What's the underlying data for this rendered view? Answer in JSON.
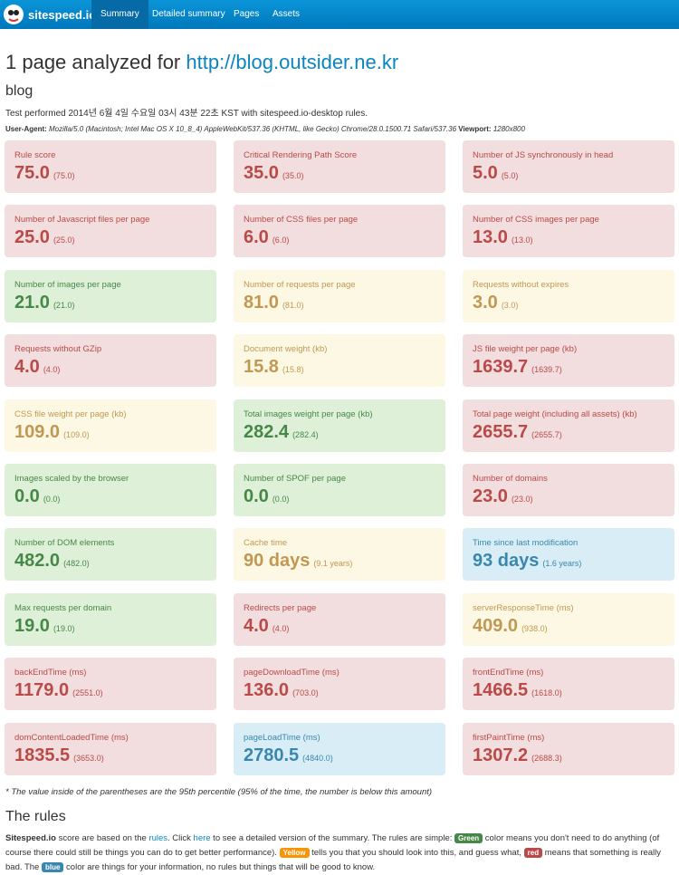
{
  "navbar": {
    "brand": "sitespeed.io",
    "items": [
      "Summary",
      "Detailed summary",
      "Pages",
      "Assets"
    ],
    "active": 0
  },
  "header": {
    "title": "1 page analyzed for ",
    "link": "http://blog.outsider.ne.kr",
    "subtitle": "blog",
    "test_info": "Test performed 2014년 6월 4일 수요일 03시 43분 22초 KST with sitespeed.io-desktop rules.",
    "user_agent_label": "User-Agent:",
    "user_agent": "Mozilla/5.0 (Macintosh; Intel Mac OS X 10_8_4) AppleWebKit/537.36 (KHTML, like Gecko) Chrome/28.0.1500.71 Safari/537.36",
    "viewport_label": "Viewport:",
    "viewport": "1280x800"
  },
  "cards": [
    {
      "title": "Rule score",
      "value": "75.0",
      "p95": "(75.0)",
      "color": "red"
    },
    {
      "title": "Critical Rendering Path Score",
      "value": "35.0",
      "p95": "(35.0)",
      "color": "red"
    },
    {
      "title": "Number of JS synchronously in head",
      "value": "5.0",
      "p95": "(5.0)",
      "color": "red"
    },
    {
      "title": "Number of Javascript files per page",
      "value": "25.0",
      "p95": "(25.0)",
      "color": "red"
    },
    {
      "title": "Number of CSS files per page",
      "value": "6.0",
      "p95": "(6.0)",
      "color": "red"
    },
    {
      "title": "Number of CSS images per page",
      "value": "13.0",
      "p95": "(13.0)",
      "color": "red"
    },
    {
      "title": "Number of images per page",
      "value": "21.0",
      "p95": "(21.0)",
      "color": "green"
    },
    {
      "title": "Number of requests per page",
      "value": "81.0",
      "p95": "(81.0)",
      "color": "yellow"
    },
    {
      "title": "Requests without expires",
      "value": "3.0",
      "p95": "(3.0)",
      "color": "yellow"
    },
    {
      "title": "Requests without GZip",
      "value": "4.0",
      "p95": "(4.0)",
      "color": "red"
    },
    {
      "title": "Document weight (kb)",
      "value": "15.8",
      "p95": "(15.8)",
      "color": "yellow"
    },
    {
      "title": "JS file weight per page (kb)",
      "value": "1639.7",
      "p95": "(1639.7)",
      "color": "red"
    },
    {
      "title": "CSS file weight per page (kb)",
      "value": "109.0",
      "p95": "(109.0)",
      "color": "yellow"
    },
    {
      "title": "Total images weight per page (kb)",
      "value": "282.4",
      "p95": "(282.4)",
      "color": "green"
    },
    {
      "title": "Total page weight (including all assets) (kb)",
      "value": "2655.7",
      "p95": "(2655.7)",
      "color": "red"
    },
    {
      "title": "Images scaled by the browser",
      "value": "0.0",
      "p95": "(0.0)",
      "color": "green"
    },
    {
      "title": "Number of SPOF per page",
      "value": "0.0",
      "p95": "(0.0)",
      "color": "green"
    },
    {
      "title": "Number of domains",
      "value": "23.0",
      "p95": "(23.0)",
      "color": "red"
    },
    {
      "title": "Number of DOM elements",
      "value": "482.0",
      "p95": "(482.0)",
      "color": "green"
    },
    {
      "title": "Cache time",
      "value": "90 days",
      "p95": "(9.1 years)",
      "color": "yellow"
    },
    {
      "title": "Time since last modification",
      "value": "93 days",
      "p95": "(1.6 years)",
      "color": "blue"
    },
    {
      "title": "Max requests per domain",
      "value": "19.0",
      "p95": "(19.0)",
      "color": "green"
    },
    {
      "title": "Redirects per page",
      "value": "4.0",
      "p95": "(4.0)",
      "color": "red"
    },
    {
      "title": "serverResponseTime (ms)",
      "value": "409.0",
      "p95": "(938.0)",
      "color": "yellow"
    },
    {
      "title": "backEndTime (ms)",
      "value": "1179.0",
      "p95": "(2551.0)",
      "color": "red"
    },
    {
      "title": "pageDownloadTime (ms)",
      "value": "136.0",
      "p95": "(703.0)",
      "color": "red"
    },
    {
      "title": "frontEndTime (ms)",
      "value": "1466.5",
      "p95": "(1618.0)",
      "color": "red"
    },
    {
      "title": "domContentLoadedTime (ms)",
      "value": "1835.5",
      "p95": "(3653.0)",
      "color": "red"
    },
    {
      "title": "pageLoadTime (ms)",
      "value": "2780.5",
      "p95": "(4840.0)",
      "color": "blue"
    },
    {
      "title": "firstPaintTime (ms)",
      "value": "1307.2",
      "p95": "(2688.3)",
      "color": "red"
    }
  ],
  "footnote": "* The value inside of the parentheses are the 95th percentile (95% of the time, the number is below this amount)",
  "rules": {
    "title": "The rules",
    "segments": [
      {
        "text": "Sitespeed.io",
        "style": "bold"
      },
      {
        "text": " score are based on the ",
        "style": "plain"
      },
      {
        "text": "rules",
        "style": "link"
      },
      {
        "text": ". Click ",
        "style": "plain"
      },
      {
        "text": "here",
        "style": "link"
      },
      {
        "text": " to see a detailed version of the summary. The rules are simple: ",
        "style": "plain"
      },
      {
        "text": "Green",
        "style": "badge-green"
      },
      {
        "text": " color means you don't need to do anything (of course there could still be things you can do to get better performance). ",
        "style": "plain"
      },
      {
        "text": "Yellow",
        "style": "badge-yellow"
      },
      {
        "text": " tells you that you should look into this, and guess what, ",
        "style": "plain"
      },
      {
        "text": "red",
        "style": "badge-red"
      },
      {
        "text": " means that something is really bad. The ",
        "style": "plain"
      },
      {
        "text": "blue",
        "style": "badge-blue"
      },
      {
        "text": " color are things for your information, no rules but things that will be good to know.",
        "style": "plain"
      }
    ]
  }
}
